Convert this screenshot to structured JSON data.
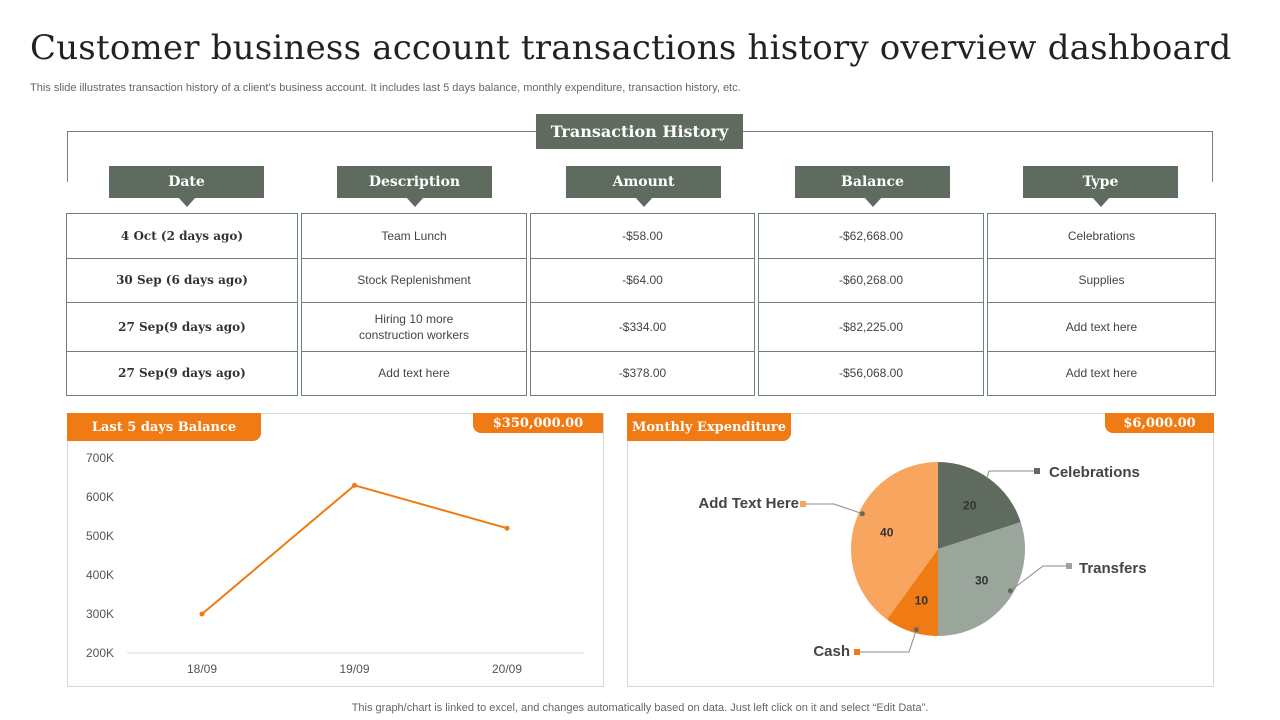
{
  "title": "Customer business account transactions history overview dashboard",
  "subtitle": "This slide illustrates transaction history of a client’s business account. It includes last 5 days balance, monthly expenditure, transaction history, etc.",
  "transaction_history": {
    "title": "Transaction History",
    "headers": [
      "Date",
      "Description",
      "Amount",
      "Balance",
      "Type"
    ],
    "rows": [
      [
        "4 Oct (2 days ago)",
        "Team Lunch",
        "-$58.00",
        "-$62,668.00",
        "Celebrations"
      ],
      [
        "30 Sep (6 days ago)",
        "Stock Replenishment",
        "-$64.00",
        "-$60,268.00",
        "Supplies"
      ],
      [
        "27 Sep(9 days ago)",
        "Hiring 10 more construction workers",
        "-$334.00",
        "-$82,225.00",
        "Add text here"
      ],
      [
        "27 Sep(9 days ago)",
        "Add text here",
        "-$378.00",
        "-$56,068.00",
        "Add text here"
      ]
    ]
  },
  "balance_panel": {
    "label": "Last 5 days Balance",
    "total": "$350,000.00"
  },
  "expenditure_panel": {
    "label": "Monthly Expenditure",
    "total": "$6,000.00"
  },
  "colors": {
    "header_green": "#5f6b5e",
    "accent_orange": "#f07a14"
  },
  "chart_data": [
    {
      "type": "line",
      "categories": [
        "18/09",
        "19/09",
        "20/09"
      ],
      "series": [
        {
          "values": [
            300000,
            630000,
            520000
          ],
          "color": "#f07a14"
        }
      ],
      "yticks": [
        "200K",
        "300K",
        "400K",
        "500K",
        "600K",
        "700K"
      ],
      "ylim": [
        200000,
        700000
      ]
    },
    {
      "type": "pie",
      "slices": [
        {
          "label": "Celebrations",
          "value": 20,
          "color": "#5f6b5e"
        },
        {
          "label": "Transfers",
          "value": 30,
          "color": "#9aa69b"
        },
        {
          "label": "Cash",
          "value": 10,
          "color": "#f07a14"
        },
        {
          "label": "Add Text Here",
          "value": 40,
          "color": "#f8a55f"
        }
      ]
    }
  ],
  "footer": "This graph/chart is linked to excel,  and changes automatically based on data. Just left click on it and select “Edit Data”."
}
